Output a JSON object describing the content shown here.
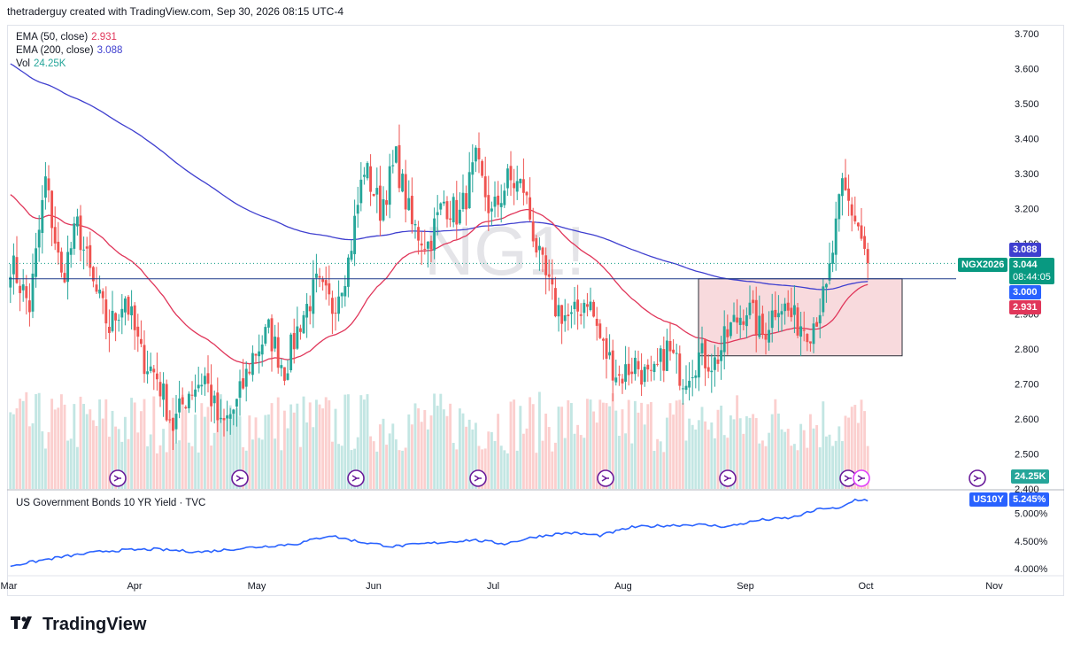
{
  "credit": "thetraderguy created with TradingView.com, Sep 30, 2026 08:15 UTC-4",
  "watermark": "NG1!",
  "legend": {
    "ema50_label": "EMA (50, close)",
    "ema50_value": "2.931",
    "ema200_label": "EMA (200, close)",
    "ema200_value": "3.088",
    "vol_label": "Vol",
    "vol_value": "24.25K"
  },
  "colors": {
    "up": "#26a69a",
    "down": "#ef5350",
    "ema50": "#e0365a",
    "ema200": "#3f3fcf",
    "yield": "#2962ff",
    "zone_fill": "#f8d7da"
  },
  "price_badges": {
    "ema200": "3.088",
    "symbol": "NGX2026",
    "last": "3.044",
    "countdown": "08:44:05",
    "level": "3.000",
    "ema50": "2.931",
    "volume": "24.25K"
  },
  "indicator": {
    "title": "US Government Bonds 10 YR Yield · TVC",
    "symbol": "US10Y",
    "value": "5.245%",
    "ticks": [
      "5.000%",
      "4.500%",
      "4.000%"
    ]
  },
  "footer_brand": "TradingView",
  "chart_data": {
    "type": "candlestick",
    "instrument": "NG1!",
    "y_ticks": [
      "3.700",
      "3.600",
      "3.500",
      "3.400",
      "3.300",
      "3.200",
      "3.100",
      "3.000",
      "2.900",
      "2.800",
      "2.700",
      "2.600",
      "2.500",
      "2.400"
    ],
    "ylim": [
      2.4,
      3.72
    ],
    "x_labels": [
      "Mar",
      "Apr",
      "May",
      "Jun",
      "Jul",
      "Aug",
      "Sep",
      "Oct",
      "Nov"
    ],
    "horizontal_level": 3.0,
    "zone": {
      "top": 3.0,
      "bottom": 2.78,
      "start_label": "Aug",
      "end_label": "Oct"
    },
    "last_price": 3.044,
    "ema50_last": 2.931,
    "ema200_last": 3.088,
    "close_waypoints": [
      [
        0,
        3.05
      ],
      [
        6,
        2.92
      ],
      [
        11,
        3.28
      ],
      [
        16,
        3.0
      ],
      [
        21,
        3.15
      ],
      [
        26,
        2.98
      ],
      [
        31,
        2.86
      ],
      [
        36,
        2.95
      ],
      [
        41,
        2.78
      ],
      [
        46,
        2.72
      ],
      [
        51,
        2.58
      ],
      [
        56,
        2.68
      ],
      [
        61,
        2.72
      ],
      [
        66,
        2.57
      ],
      [
        71,
        2.64
      ],
      [
        76,
        2.78
      ],
      [
        81,
        2.85
      ],
      [
        86,
        2.74
      ],
      [
        91,
        2.88
      ],
      [
        96,
        2.98
      ],
      [
        101,
        2.92
      ],
      [
        106,
        3.05
      ],
      [
        111,
        3.32
      ],
      [
        116,
        3.2
      ],
      [
        121,
        3.34
      ],
      [
        126,
        3.15
      ],
      [
        131,
        3.1
      ],
      [
        136,
        3.22
      ],
      [
        141,
        3.18
      ],
      [
        146,
        3.33
      ],
      [
        151,
        3.18
      ],
      [
        156,
        3.28
      ],
      [
        161,
        3.26
      ],
      [
        166,
        3.05
      ],
      [
        171,
        2.92
      ],
      [
        176,
        2.88
      ],
      [
        181,
        2.95
      ],
      [
        186,
        2.8
      ],
      [
        191,
        2.72
      ],
      [
        196,
        2.76
      ],
      [
        201,
        2.7
      ],
      [
        206,
        2.8
      ],
      [
        211,
        2.72
      ],
      [
        216,
        2.78
      ],
      [
        221,
        2.76
      ],
      [
        226,
        2.86
      ],
      [
        231,
        2.92
      ],
      [
        236,
        2.84
      ],
      [
        241,
        2.94
      ],
      [
        246,
        2.88
      ],
      [
        251,
        2.86
      ],
      [
        256,
        2.96
      ],
      [
        261,
        3.26
      ],
      [
        266,
        3.15
      ],
      [
        269,
        3.044
      ]
    ],
    "volume_unit": "K",
    "yield_waypoints": [
      [
        0,
        4.05
      ],
      [
        15,
        4.2
      ],
      [
        30,
        4.32
      ],
      [
        45,
        4.35
      ],
      [
        60,
        4.3
      ],
      [
        75,
        4.38
      ],
      [
        90,
        4.45
      ],
      [
        100,
        4.6
      ],
      [
        110,
        4.48
      ],
      [
        120,
        4.4
      ],
      [
        130,
        4.45
      ],
      [
        145,
        4.52
      ],
      [
        155,
        4.45
      ],
      [
        165,
        4.58
      ],
      [
        175,
        4.65
      ],
      [
        185,
        4.6
      ],
      [
        195,
        4.75
      ],
      [
        205,
        4.78
      ],
      [
        215,
        4.8
      ],
      [
        225,
        4.76
      ],
      [
        235,
        4.88
      ],
      [
        245,
        4.92
      ],
      [
        255,
        5.1
      ],
      [
        260,
        5.08
      ],
      [
        265,
        5.25
      ],
      [
        269,
        5.245
      ]
    ],
    "ylim_yield": [
      3.9,
      5.35
    ]
  }
}
